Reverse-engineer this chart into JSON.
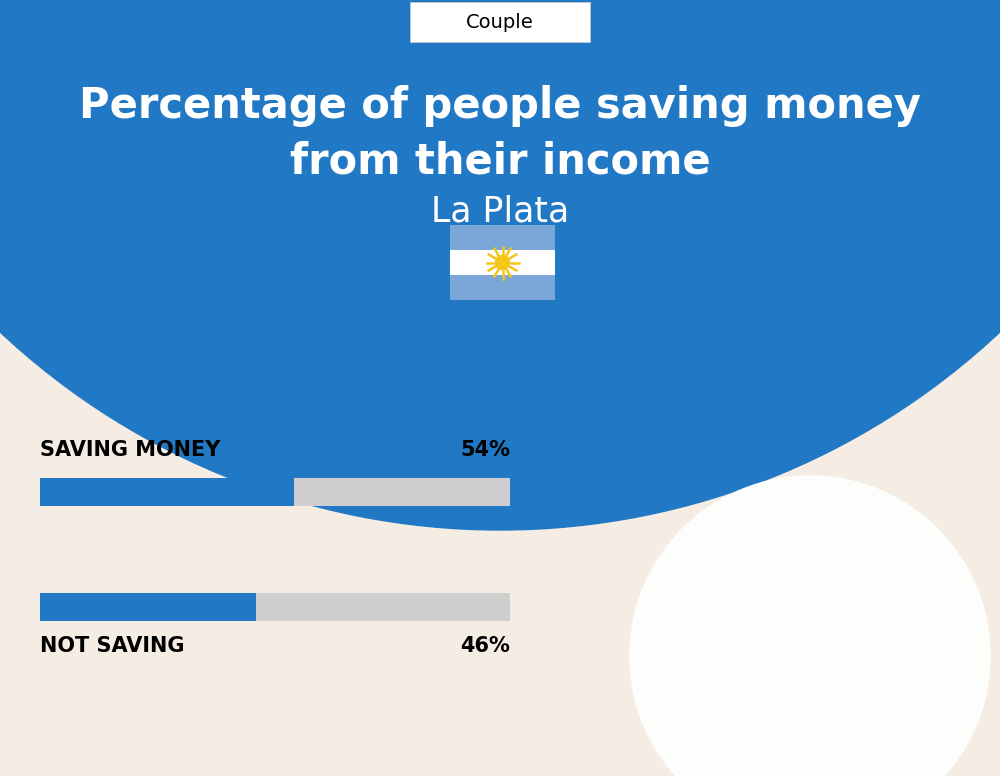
{
  "title_line1": "Percentage of people saving money",
  "title_line2": "from their income",
  "subtitle": "La Plata",
  "tab_label": "Couple",
  "bg_color": "#F5EDE3",
  "blue_color": "#2178C4",
  "bar_bg_color": "#CECECE",
  "saving_label": "SAVING MONEY",
  "saving_pct": 54,
  "saving_pct_label": "54%",
  "not_saving_label": "NOT SAVING",
  "not_saving_pct": 46,
  "not_saving_pct_label": "46%",
  "bar_max": 100,
  "flag_light_blue": "#7BA7D8",
  "flag_white": "#FFFFFF",
  "flag_sun_color": "#F5C518",
  "white": "#FFFFFF",
  "black": "#000000"
}
